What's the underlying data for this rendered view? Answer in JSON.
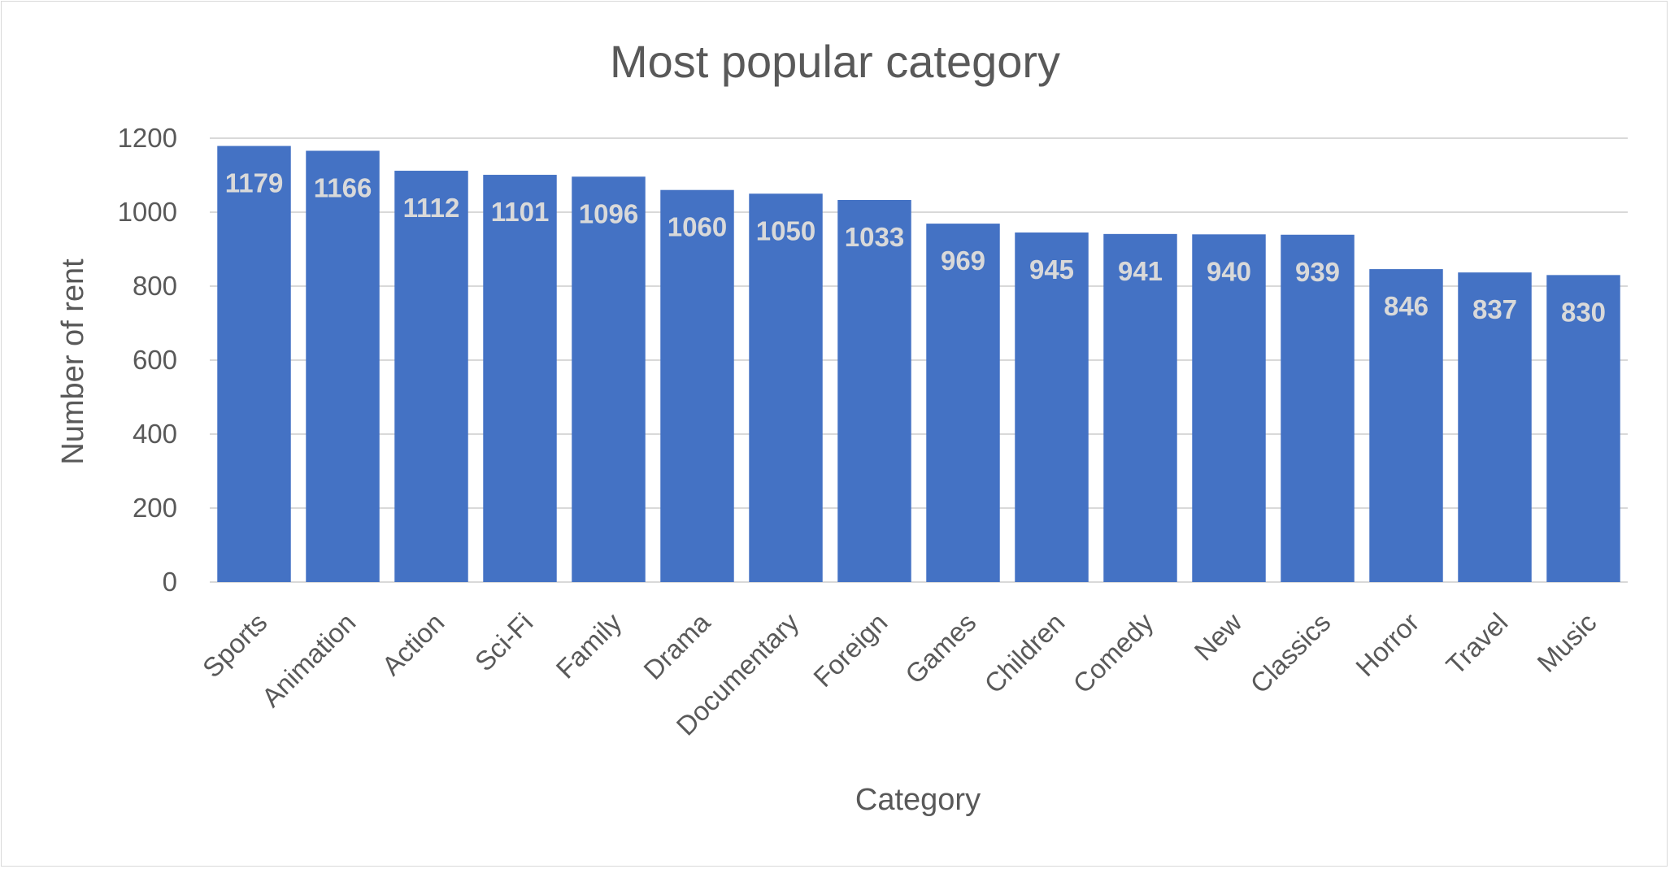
{
  "chart_data": {
    "type": "bar",
    "title": "Most popular category",
    "xlabel": "Category",
    "ylabel": "Number of rent",
    "ylim": [
      0,
      1200
    ],
    "yticks": [
      0,
      200,
      400,
      600,
      800,
      1000,
      1200
    ],
    "grid": true,
    "bar_color": "#4472C4",
    "categories": [
      "Sports",
      "Animation",
      "Action",
      "Sci-Fi",
      "Family",
      "Drama",
      "Documentary",
      "Foreign",
      "Games",
      "Children",
      "Comedy",
      "New",
      "Classics",
      "Horror",
      "Travel",
      "Music"
    ],
    "values": [
      1179,
      1166,
      1112,
      1101,
      1096,
      1060,
      1050,
      1033,
      969,
      945,
      941,
      940,
      939,
      846,
      837,
      830
    ]
  }
}
